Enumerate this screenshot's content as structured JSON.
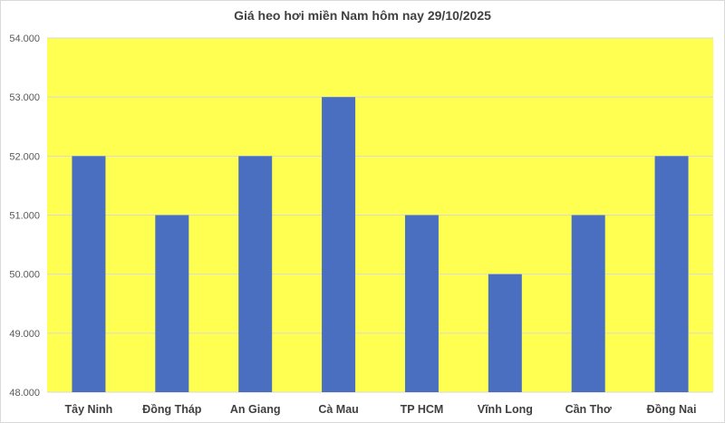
{
  "chart_data": {
    "type": "bar",
    "title": "Giá heo hơi miền Nam hôm nay 29/10/2025",
    "categories": [
      "Tây Ninh",
      "Đồng Tháp",
      "An Giang",
      "Cà Mau",
      "TP HCM",
      "Vĩnh Long",
      "Cần Thơ",
      "Đồng Nai"
    ],
    "values": [
      52000,
      51000,
      52000,
      53000,
      51000,
      50000,
      51000,
      52000
    ],
    "ylim": [
      48000,
      54000
    ],
    "yticks": [
      48000,
      49000,
      50000,
      51000,
      52000,
      53000,
      54000
    ],
    "ytick_labels": [
      "48.000",
      "49.000",
      "50.000",
      "51.000",
      "52.000",
      "53.000",
      "54.000"
    ],
    "xlabel": "",
    "ylabel": "",
    "grid": true,
    "legend": "none",
    "colors": {
      "bar": "#4A6FC0",
      "plot_background": "#FFFF52",
      "gridline": "#D9D9D9"
    }
  }
}
